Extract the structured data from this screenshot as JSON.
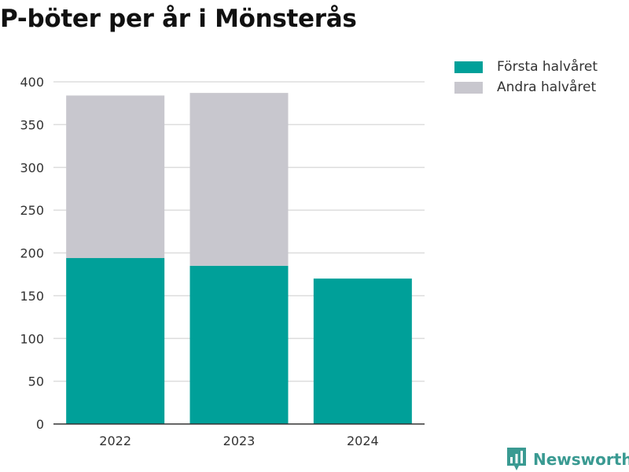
{
  "title": "P-böter per år i Mönsterås",
  "brand": "Newsworthy",
  "colors": {
    "first_half": "#00a099",
    "second_half": "#c8c7ce",
    "grid": "#dddddd",
    "axis": "#333333"
  },
  "chart_data": {
    "type": "bar",
    "stacked": true,
    "categories": [
      "2022",
      "2023",
      "2024"
    ],
    "series": [
      {
        "name": "Första halvåret",
        "values": [
          194,
          185,
          170
        ]
      },
      {
        "name": "Andra halvåret",
        "values": [
          190,
          202,
          0
        ]
      }
    ],
    "ylim": [
      0,
      400
    ],
    "yticks": [
      0,
      50,
      100,
      150,
      200,
      250,
      300,
      350,
      400
    ],
    "grid": true,
    "legend": "top-right"
  }
}
